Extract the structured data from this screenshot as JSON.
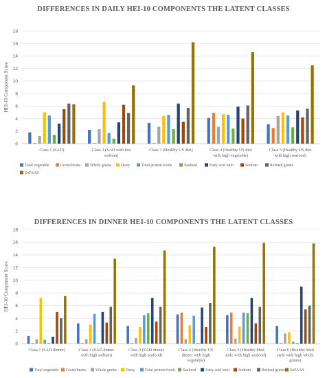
{
  "chart_data": [
    {
      "type": "bar",
      "title": "DIFFERENCES IN DAILY HEI-10 COMPONENTS THE LATENT CLASSES",
      "ylabel": "HEI-10 Component Score",
      "ylim": [
        0,
        18
      ],
      "yticks": [
        0,
        2,
        4,
        6,
        8,
        10,
        12,
        14,
        16,
        18
      ],
      "grid": true,
      "legend_position": "bottom",
      "categories": [
        [
          "Class 1 (SAD)"
        ],
        [
          "Class 2 (SAD with low",
          "sodium)"
        ],
        [
          "Class 3 (Healthy US diet)"
        ],
        [
          "Class 4 (Healthy US diet",
          "with high vegetable)"
        ],
        [
          "Class 5 (Healthy US diet",
          "with high seafood)"
        ]
      ],
      "series": [
        {
          "name": "Total vegetable",
          "color": "#4472c4",
          "values": [
            1.8,
            2.2,
            3.3,
            4.1,
            3.1
          ]
        },
        {
          "name": "Green/beans",
          "color": "#ed7d31",
          "values": [
            0.1,
            0.1,
            0.1,
            4.9,
            2.5
          ]
        },
        {
          "name": "Whole grains",
          "color": "#a5a5a5",
          "values": [
            1.2,
            2.3,
            2.7,
            2.7,
            4.4
          ]
        },
        {
          "name": "Dairy",
          "color": "#ffc000",
          "values": [
            5.0,
            6.7,
            4.4,
            4.7,
            5.0
          ]
        },
        {
          "name": "Total protein foods",
          "color": "#5b9bd5",
          "values": [
            4.5,
            1.7,
            4.6,
            4.6,
            4.5
          ]
        },
        {
          "name": "Seafood",
          "color": "#70ad47",
          "values": [
            1.4,
            0.8,
            2.3,
            2.4,
            2.6
          ]
        },
        {
          "name": "Fatty acid ratio",
          "color": "#264478",
          "values": [
            3.2,
            3.4,
            6.4,
            5.9,
            5.3
          ]
        },
        {
          "name": "Sodium",
          "color": "#9e480e",
          "values": [
            5.5,
            6.2,
            3.5,
            4.0,
            4.2
          ]
        },
        {
          "name": "Refined grains",
          "color": "#636363",
          "values": [
            6.4,
            4.9,
            5.7,
            6.1,
            5.6
          ]
        },
        {
          "name": "SoFAAS",
          "color": "#997300",
          "values": [
            6.3,
            9.3,
            16.2,
            14.6,
            12.5
          ]
        }
      ]
    },
    {
      "type": "bar",
      "title": "DIFFERENCES IN DINNER HEI-10 COMPONENTS THE LATENT CLASSES",
      "ylabel": "HEI-10 Component Score",
      "ylim": [
        0,
        18
      ],
      "yticks": [
        0,
        2,
        4,
        6,
        8,
        10,
        12,
        14,
        16,
        18
      ],
      "grid": true,
      "legend_position": "bottom",
      "categories": [
        [
          "Class 1 (SAD dinner)"
        ],
        [
          "Class 2 (SAD dinner",
          "with high sodium)"
        ],
        [
          "Class 3 (SAD dinner",
          "with high seafood)"
        ],
        [
          "Class 4 (Healthy US",
          "dinner with high",
          "vegetable)"
        ],
        [
          "Class 5 (Healthy Med",
          "style with high seafood)"
        ],
        [
          "Class 6 (Healthy Med",
          "style with high whole",
          "grains)"
        ]
      ],
      "series": [
        {
          "name": "Total vegetable",
          "color": "#4472c4",
          "values": [
            1.2,
            3.2,
            2.8,
            4.6,
            4.5,
            2.8
          ]
        },
        {
          "name": "Green/beans",
          "color": "#ed7d31",
          "values": [
            0.1,
            0.1,
            0.1,
            4.9,
            4.9,
            0.1
          ]
        },
        {
          "name": "Whole grains",
          "color": "#a5a5a5",
          "values": [
            0.7,
            0.7,
            0.9,
            0.7,
            0.8,
            1.6
          ]
        },
        {
          "name": "Dairy",
          "color": "#ffc000",
          "values": [
            7.2,
            3.0,
            2.6,
            2.9,
            2.7,
            1.8
          ]
        },
        {
          "name": "Total protein foods",
          "color": "#5b9bd5",
          "values": [
            0.6,
            4.7,
            4.5,
            4.4,
            4.9,
            0.3
          ]
        },
        {
          "name": "Seafood",
          "color": "#70ad47",
          "values": [
            0.1,
            0.1,
            4.8,
            0.1,
            4.8,
            0.1
          ]
        },
        {
          "name": "Fatty acid ratio",
          "color": "#264478",
          "values": [
            1.1,
            5.0,
            7.2,
            5.7,
            7.2,
            9.0
          ]
        },
        {
          "name": "Sodium",
          "color": "#9e480e",
          "values": [
            5.0,
            3.3,
            3.5,
            2.6,
            3.2,
            5.4
          ]
        },
        {
          "name": "Refined grains",
          "color": "#636363",
          "values": [
            4.0,
            5.8,
            5.8,
            6.4,
            5.8,
            6.0
          ]
        },
        {
          "name": "SoFAAS",
          "color": "#997300",
          "values": [
            7.5,
            13.4,
            14.7,
            15.3,
            15.9,
            15.8
          ]
        }
      ]
    }
  ]
}
